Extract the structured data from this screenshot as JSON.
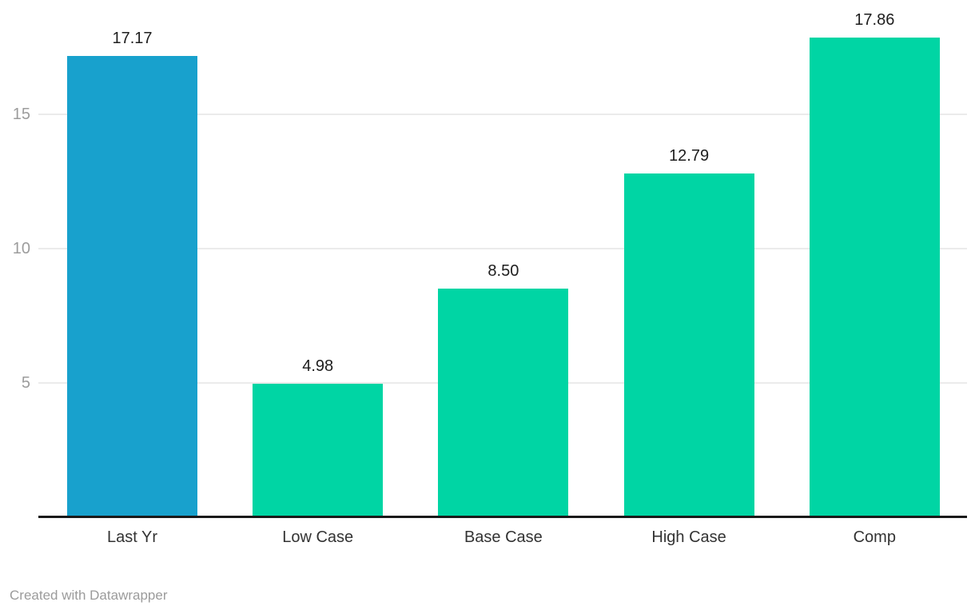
{
  "chart_data": {
    "type": "bar",
    "categories": [
      "Last Yr",
      "Low Case",
      "Base Case",
      "High Case",
      "Comp"
    ],
    "values": [
      17.17,
      4.98,
      8.5,
      12.79,
      17.86
    ],
    "value_labels": [
      "17.17",
      "4.98",
      "8.50",
      "12.79",
      "17.86"
    ],
    "bar_colors": [
      "#18a1cd",
      "#00d5a4",
      "#00d5a4",
      "#00d5a4",
      "#00d5a4"
    ],
    "y_ticks": [
      5,
      10,
      15
    ],
    "y_tick_labels": [
      "5",
      "10",
      "15"
    ],
    "ylim": [
      0,
      19.25
    ],
    "grid": true,
    "legend": "none",
    "title": "",
    "xlabel": "",
    "ylabel": ""
  },
  "colors": {
    "highlight_bar": "#18a1cd",
    "default_bar": "#00d5a4",
    "gridline": "#ebebeb",
    "axis_line": "#1a1a1a",
    "tick_label": "#9c9c9c",
    "value_label": "#1d1d1d",
    "category_label": "#333333",
    "footer_text": "#9b9b9b"
  },
  "footer": {
    "attribution": "Created with Datawrapper"
  }
}
